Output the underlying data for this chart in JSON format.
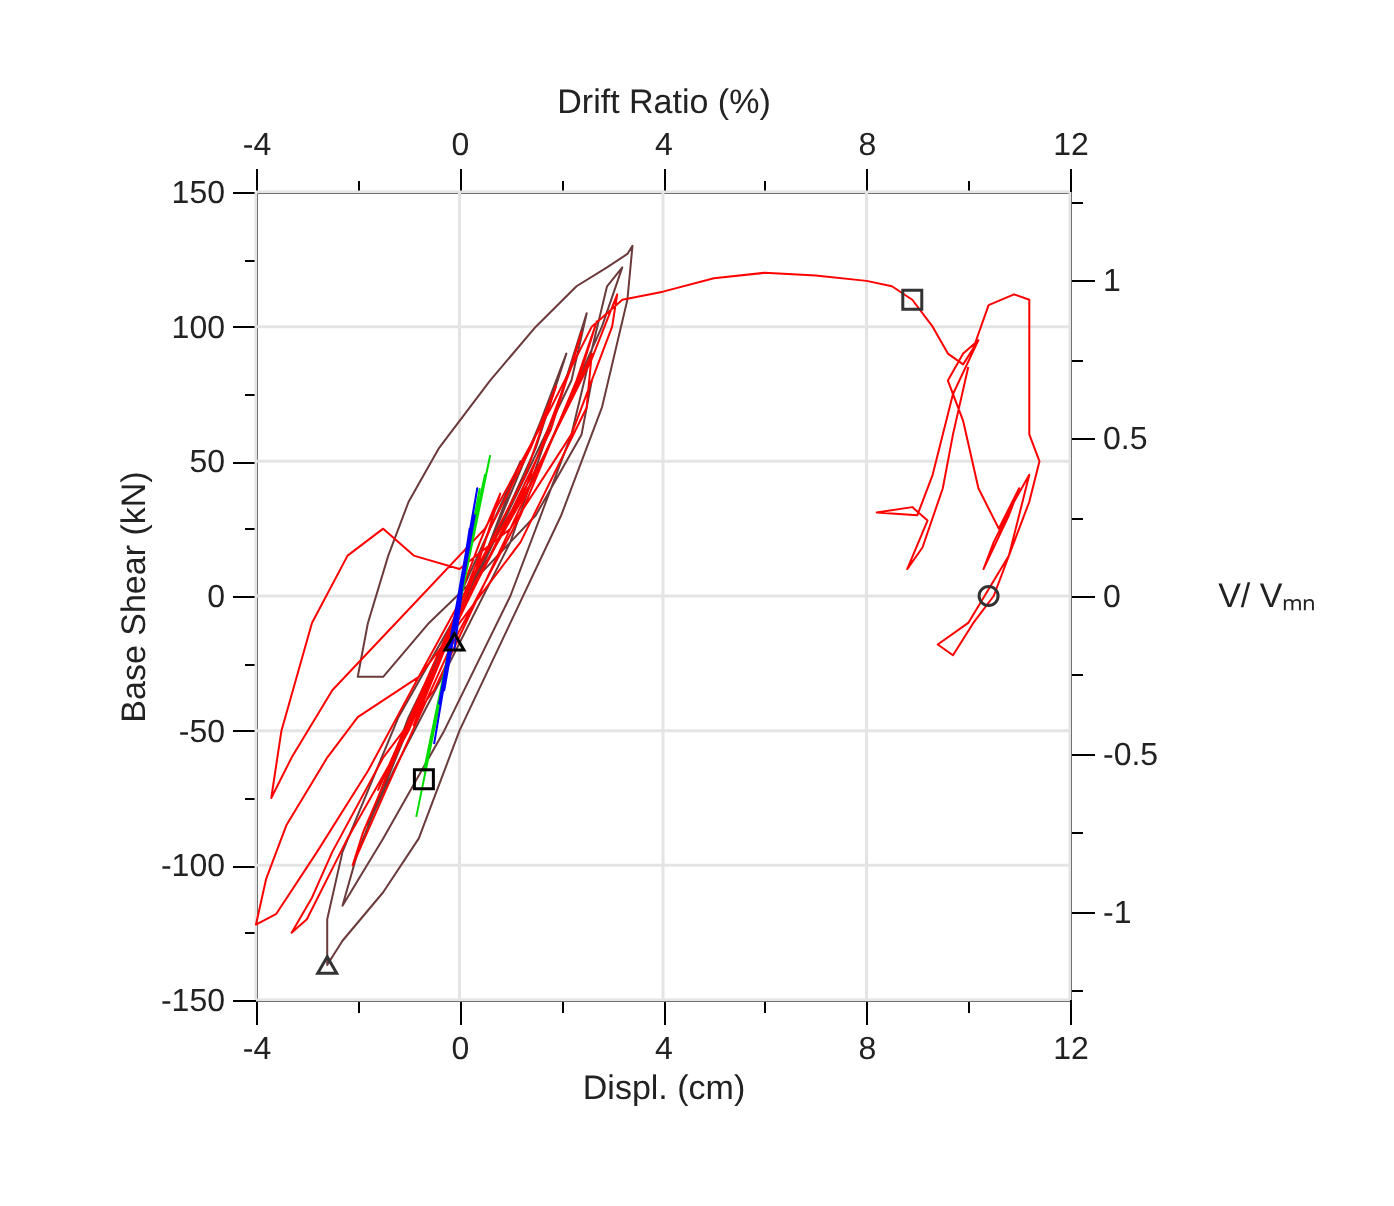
{
  "chart_data": {
    "type": "line",
    "xlabel": "Displ. (cm)",
    "ylabel": "Base Shear (kN)",
    "x2label": "Drift Ratio (%)",
    "y2label": "V/ Vₘₙ",
    "xlim": [
      -4,
      12
    ],
    "xticks": [
      -4,
      {
        "value": -2,
        "label": null
      },
      0,
      {
        "value": 2,
        "label": null
      },
      4,
      {
        "value": 6,
        "label": null
      },
      8,
      {
        "value": 10,
        "label": null
      },
      12
    ],
    "x2lim": [
      -4,
      12
    ],
    "x2ticks": [
      -4,
      {
        "value": -2,
        "label": null
      },
      0,
      {
        "value": 2,
        "label": null
      },
      4,
      {
        "value": 6,
        "label": null
      },
      8,
      {
        "value": 10,
        "label": null
      },
      12
    ],
    "ylim": [
      -150,
      150
    ],
    "yticks": [
      -150,
      {
        "value": -125,
        "label": null
      },
      -100,
      {
        "value": -75,
        "label": null
      },
      -50,
      {
        "value": -25,
        "label": null
      },
      0,
      {
        "value": 25,
        "label": null
      },
      50,
      {
        "value": 75,
        "label": null
      },
      100,
      {
        "value": 125,
        "label": null
      },
      150
    ],
    "y2lim": [
      -1.28,
      1.28
    ],
    "y2ticks": [
      {
        "value": -1.25,
        "label": null
      },
      -1,
      {
        "value": -0.75,
        "label": null
      },
      -0.5,
      {
        "value": -0.25,
        "label": null
      },
      0,
      {
        "value": 0.25,
        "label": null
      },
      0.5,
      {
        "value": 0.75,
        "label": null
      },
      1,
      {
        "value": 1.25,
        "label": null
      }
    ],
    "grid": true,
    "series": [
      {
        "line_style": "solid",
        "color": "#6b3a3a",
        "x": [
          0,
          0.6,
          1.2,
          0.5,
          -0.5,
          -1.2,
          -0.5,
          0.5,
          1.6,
          2.1,
          1.5,
          0.3,
          -1.0,
          -1.8,
          -1.3,
          -0.2,
          1.0,
          2.0,
          2.5,
          2.2,
          0.8,
          -0.6,
          -2.0,
          -2.3,
          -1.5,
          -0.3,
          1.0,
          2.2,
          2.9,
          3.2,
          2.8,
          1.5,
          0,
          -1.2,
          -2.3,
          -2.6,
          -2.6,
          -2.3,
          -1.5,
          -0.8,
          0,
          1.0,
          2.0,
          2.8,
          3.3,
          3.4,
          3.3,
          2.9,
          2.3,
          1.5,
          0.6,
          -0.4,
          -1.0,
          -1.4,
          -1.8,
          -2.0,
          -1.5,
          -0.6,
          0.5,
          1.5,
          2.4,
          2.6
        ],
        "values": [
          0,
          25,
          50,
          15,
          -25,
          -55,
          -25,
          15,
          65,
          90,
          55,
          5,
          -45,
          -85,
          -65,
          -25,
          20,
          75,
          105,
          80,
          25,
          -30,
          -95,
          -115,
          -90,
          -50,
          0,
          60,
          115,
          122,
          100,
          45,
          -5,
          -45,
          -95,
          -120,
          -137,
          -128,
          -110,
          -90,
          -50,
          -10,
          30,
          70,
          110,
          130,
          127,
          122,
          115,
          100,
          80,
          55,
          35,
          15,
          -10,
          -30,
          -30,
          -10,
          10,
          30,
          60,
          80
        ]
      },
      {
        "line_style": "solid",
        "color": "#ff0000",
        "x": [
          0,
          0.4,
          0.8,
          0.3,
          -0.4,
          -0.9,
          -0.3,
          0.6,
          1.4,
          1.9,
          1.3,
          0.2,
          -0.9,
          -1.6,
          -1.0,
          0.2,
          1.3,
          2.2,
          2.4,
          1.8,
          0.6,
          -0.7,
          -1.9,
          -2.1,
          -1.4,
          -0.2,
          1.2,
          2.3,
          2.7,
          2.3,
          1.0,
          -0.5,
          -1.5,
          -2.5,
          -2.9,
          -3.3,
          -3.0,
          -2.2,
          -1.0,
          0.3,
          1.5,
          2.6,
          2.5,
          1.2,
          -0.8,
          -2.0,
          -2.6,
          -3.4,
          -3.8,
          -4.0,
          -3.6,
          -2.8,
          -1.8,
          -0.8,
          0.5,
          1.6,
          2.6,
          3.1,
          3.0,
          2.2,
          1.0,
          0,
          -0.9,
          -1.5,
          -2.2,
          -2.9,
          -3.5,
          -3.7,
          -3.3,
          -2.5,
          -1.0,
          0.5,
          1.8,
          2.6,
          3.2,
          4,
          5,
          6,
          7,
          8,
          8.5,
          8.9,
          9.3,
          9.6,
          9.9,
          10.1,
          10.4,
          10.9,
          11.2,
          11.2,
          11.2,
          11.4,
          11.2,
          10.9,
          10.5,
          10.1,
          9.7,
          9.4,
          10.0,
          10.8,
          11.2,
          10.9,
          10.5,
          10.3,
          10.8,
          11.0,
          10.6,
          10.2,
          9.9,
          9.6,
          9.9,
          10.2,
          9.7,
          9.3,
          9.0,
          8.2,
          8.9,
          9.2,
          8.8,
          9.1,
          9.5,
          9.7,
          10.0
        ],
        "values": [
          0,
          20,
          38,
          8,
          -25,
          -48,
          -18,
          25,
          55,
          78,
          45,
          5,
          -42,
          -72,
          -48,
          0,
          40,
          85,
          98,
          62,
          15,
          -35,
          -88,
          -100,
          -70,
          -20,
          30,
          80,
          102,
          78,
          25,
          -35,
          -60,
          -95,
          -112,
          -125,
          -120,
          -90,
          -50,
          5,
          45,
          90,
          70,
          20,
          -30,
          -45,
          -60,
          -85,
          -105,
          -122,
          -118,
          -95,
          -65,
          -30,
          15,
          50,
          88,
          112,
          100,
          60,
          25,
          10,
          15,
          25,
          15,
          -10,
          -50,
          -75,
          -60,
          -35,
          -5,
          25,
          70,
          100,
          110,
          113,
          118,
          120,
          119,
          117,
          115,
          110,
          100,
          90,
          86,
          92,
          108,
          112,
          110,
          80,
          60,
          50,
          35,
          20,
          0,
          -10,
          -22,
          -18,
          -10,
          15,
          45,
          35,
          20,
          10,
          30,
          40,
          25,
          40,
          65,
          80,
          90,
          95,
          75,
          45,
          30,
          31,
          33,
          28,
          10,
          18,
          40,
          60,
          85
        ]
      },
      {
        "line_style": "solid",
        "color": "#00dd00",
        "x": [
          -0.85,
          0.6,
          -0.7,
          0.5,
          -0.5,
          0.4
        ],
        "values": [
          -82,
          52,
          -65,
          45,
          -50,
          40
        ]
      },
      {
        "line_style": "solid",
        "color": "#0000ff",
        "x": [
          -0.5,
          0.35,
          -0.4,
          0.3,
          -0.3,
          0.2,
          -0.1
        ],
        "values": [
          -55,
          40,
          -40,
          30,
          -35,
          25,
          -20
        ]
      },
      {
        "type": "scatter",
        "marker": "square",
        "color": "#333333",
        "x": [
          8.9
        ],
        "values": [
          110
        ]
      },
      {
        "type": "scatter",
        "marker": "circle",
        "color": "#333333",
        "x": [
          10.4
        ],
        "values": [
          0
        ]
      },
      {
        "type": "scatter",
        "marker": "triangle",
        "color": "#333333",
        "x": [
          -2.6
        ],
        "values": [
          -137
        ]
      },
      {
        "type": "scatter",
        "marker": "square",
        "color": "#000000",
        "x": [
          -0.7
        ],
        "values": [
          -68
        ]
      },
      {
        "type": "scatter",
        "marker": "triangle",
        "color": "#000000",
        "x": [
          -0.1
        ],
        "values": [
          -17
        ]
      }
    ]
  }
}
